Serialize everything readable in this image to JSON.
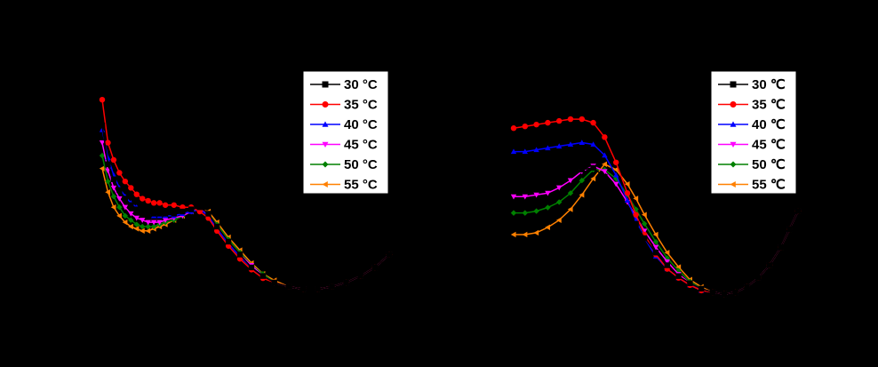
{
  "colors": {
    "30": "#000000",
    "35": "#ff0000",
    "40": "#0000ff",
    "45": "#ff00ff",
    "50": "#008000",
    "55": "#ff8000",
    "background": "#000000",
    "legend_background": "#ffffff"
  },
  "chart_data": [
    {
      "type": "line",
      "title": "",
      "xlabel": "",
      "ylabel": "",
      "legend_position": "top-right",
      "series": [
        {
          "name": "30 °C",
          "marker": "square",
          "color": "#000000",
          "x": [
            0.0,
            0.02,
            0.04,
            0.06,
            0.08,
            0.1,
            0.12,
            0.14,
            0.16,
            0.18,
            0.2,
            0.22,
            0.25,
            0.28,
            0.31,
            0.34,
            0.37,
            0.4,
            0.44,
            0.48,
            0.52,
            0.56,
            0.6,
            0.65,
            0.7,
            0.75,
            0.8,
            0.85,
            0.9,
            0.95,
            1.0
          ],
          "y": [
            0.78,
            0.6,
            0.53,
            0.48,
            0.44,
            0.41,
            0.39,
            0.38,
            0.37,
            0.37,
            0.37,
            0.37,
            0.37,
            0.38,
            0.39,
            0.4,
            0.37,
            0.31,
            0.24,
            0.18,
            0.12,
            0.08,
            0.05,
            0.03,
            0.02,
            0.02,
            0.03,
            0.05,
            0.08,
            0.12,
            0.18
          ]
        },
        {
          "name": "35 °C",
          "marker": "circle",
          "color": "#ff0000",
          "x": [
            0.0,
            0.02,
            0.04,
            0.06,
            0.08,
            0.1,
            0.12,
            0.14,
            0.16,
            0.18,
            0.2,
            0.22,
            0.25,
            0.28,
            0.31,
            0.34,
            0.37,
            0.4,
            0.44,
            0.48,
            0.52,
            0.56,
            0.6,
            0.65,
            0.7,
            0.75,
            0.8,
            0.85,
            0.9,
            0.95,
            1.0
          ],
          "y": [
            0.9,
            0.7,
            0.62,
            0.56,
            0.52,
            0.49,
            0.46,
            0.44,
            0.43,
            0.42,
            0.42,
            0.41,
            0.41,
            0.4,
            0.4,
            0.38,
            0.35,
            0.29,
            0.22,
            0.16,
            0.11,
            0.07,
            0.05,
            0.03,
            0.02,
            0.02,
            0.03,
            0.05,
            0.08,
            0.12,
            0.18
          ]
        },
        {
          "name": "40 °C",
          "marker": "triangle-up",
          "color": "#0000ff",
          "x": [
            0.0,
            0.02,
            0.04,
            0.06,
            0.08,
            0.1,
            0.12,
            0.14,
            0.16,
            0.18,
            0.2,
            0.22,
            0.25,
            0.28,
            0.31,
            0.34,
            0.37,
            0.4,
            0.44,
            0.48,
            0.52,
            0.56,
            0.6,
            0.65,
            0.7,
            0.75,
            0.8,
            0.85,
            0.9,
            0.95,
            1.0
          ],
          "y": [
            0.76,
            0.63,
            0.55,
            0.49,
            0.45,
            0.42,
            0.4,
            0.38,
            0.37,
            0.36,
            0.36,
            0.36,
            0.36,
            0.37,
            0.38,
            0.39,
            0.36,
            0.3,
            0.23,
            0.17,
            0.12,
            0.08,
            0.05,
            0.03,
            0.02,
            0.02,
            0.03,
            0.05,
            0.08,
            0.12,
            0.18
          ]
        },
        {
          "name": "45 °C",
          "marker": "triangle-down",
          "color": "#ff00ff",
          "x": [
            0.0,
            0.02,
            0.04,
            0.06,
            0.08,
            0.1,
            0.12,
            0.14,
            0.16,
            0.18,
            0.2,
            0.22,
            0.25,
            0.28,
            0.31,
            0.34,
            0.37,
            0.4,
            0.44,
            0.48,
            0.52,
            0.56,
            0.6,
            0.65,
            0.7,
            0.75,
            0.8,
            0.85,
            0.9,
            0.95,
            1.0
          ],
          "y": [
            0.7,
            0.57,
            0.49,
            0.44,
            0.4,
            0.37,
            0.35,
            0.34,
            0.33,
            0.33,
            0.33,
            0.34,
            0.35,
            0.36,
            0.38,
            0.39,
            0.37,
            0.31,
            0.24,
            0.18,
            0.13,
            0.08,
            0.05,
            0.03,
            0.02,
            0.02,
            0.03,
            0.05,
            0.08,
            0.12,
            0.18
          ]
        },
        {
          "name": "50 °C",
          "marker": "diamond",
          "color": "#008000",
          "x": [
            0.0,
            0.02,
            0.04,
            0.06,
            0.08,
            0.1,
            0.12,
            0.14,
            0.16,
            0.18,
            0.2,
            0.22,
            0.25,
            0.28,
            0.31,
            0.34,
            0.37,
            0.4,
            0.44,
            0.48,
            0.52,
            0.56,
            0.6,
            0.65,
            0.7,
            0.75,
            0.8,
            0.85,
            0.9,
            0.95,
            1.0
          ],
          "y": [
            0.64,
            0.52,
            0.45,
            0.4,
            0.36,
            0.34,
            0.32,
            0.31,
            0.31,
            0.31,
            0.32,
            0.33,
            0.34,
            0.36,
            0.38,
            0.39,
            0.37,
            0.32,
            0.25,
            0.19,
            0.13,
            0.09,
            0.05,
            0.03,
            0.02,
            0.02,
            0.03,
            0.05,
            0.08,
            0.12,
            0.18
          ]
        },
        {
          "name": "55 °C",
          "marker": "triangle-left",
          "color": "#ff8000",
          "x": [
            0.0,
            0.02,
            0.04,
            0.06,
            0.08,
            0.1,
            0.12,
            0.14,
            0.16,
            0.18,
            0.2,
            0.22,
            0.25,
            0.28,
            0.31,
            0.34,
            0.37,
            0.4,
            0.44,
            0.48,
            0.52,
            0.56,
            0.6,
            0.65,
            0.7,
            0.75,
            0.8,
            0.85,
            0.9,
            0.95,
            1.0
          ],
          "y": [
            0.58,
            0.47,
            0.4,
            0.36,
            0.33,
            0.31,
            0.3,
            0.29,
            0.29,
            0.3,
            0.31,
            0.32,
            0.34,
            0.36,
            0.38,
            0.39,
            0.38,
            0.33,
            0.26,
            0.2,
            0.14,
            0.09,
            0.06,
            0.03,
            0.02,
            0.02,
            0.03,
            0.05,
            0.08,
            0.12,
            0.18
          ]
        }
      ]
    },
    {
      "type": "line",
      "title": "",
      "xlabel": "",
      "ylabel": "",
      "legend_position": "top-right",
      "series": [
        {
          "name": "30 ℃",
          "marker": "square",
          "color": "#000000",
          "x": [
            0.0,
            0.04,
            0.08,
            0.12,
            0.16,
            0.2,
            0.24,
            0.28,
            0.32,
            0.36,
            0.4,
            0.43,
            0.46,
            0.5,
            0.54,
            0.58,
            0.62,
            0.66,
            0.7,
            0.74,
            0.78,
            0.82,
            0.86,
            0.9,
            0.94,
            0.97,
            1.0
          ],
          "y": [
            0.62,
            0.62,
            0.63,
            0.64,
            0.66,
            0.68,
            0.7,
            0.71,
            0.66,
            0.57,
            0.47,
            0.4,
            0.32,
            0.24,
            0.17,
            0.11,
            0.07,
            0.04,
            0.02,
            0.01,
            0.02,
            0.05,
            0.1,
            0.17,
            0.27,
            0.37,
            0.47
          ]
        },
        {
          "name": "35 ℃",
          "marker": "circle",
          "color": "#ff0000",
          "x": [
            0.0,
            0.04,
            0.08,
            0.12,
            0.16,
            0.2,
            0.24,
            0.28,
            0.32,
            0.36,
            0.4,
            0.43,
            0.46,
            0.5,
            0.54,
            0.58,
            0.62,
            0.66,
            0.7,
            0.74,
            0.78,
            0.82,
            0.86,
            0.9,
            0.94,
            0.97,
            1.0
          ],
          "y": [
            0.93,
            0.94,
            0.95,
            0.96,
            0.97,
            0.98,
            0.98,
            0.96,
            0.88,
            0.74,
            0.57,
            0.45,
            0.34,
            0.23,
            0.15,
            0.1,
            0.06,
            0.03,
            0.02,
            0.01,
            0.02,
            0.05,
            0.1,
            0.17,
            0.27,
            0.37,
            0.47
          ]
        },
        {
          "name": "40 ℃",
          "marker": "triangle-up",
          "color": "#0000ff",
          "x": [
            0.0,
            0.04,
            0.08,
            0.12,
            0.16,
            0.2,
            0.24,
            0.28,
            0.32,
            0.36,
            0.4,
            0.43,
            0.46,
            0.5,
            0.54,
            0.58,
            0.62,
            0.66,
            0.7,
            0.74,
            0.78,
            0.82,
            0.86,
            0.9,
            0.94,
            0.97,
            1.0
          ],
          "y": [
            0.8,
            0.8,
            0.81,
            0.82,
            0.83,
            0.84,
            0.85,
            0.84,
            0.78,
            0.67,
            0.53,
            0.42,
            0.32,
            0.22,
            0.15,
            0.1,
            0.06,
            0.03,
            0.02,
            0.01,
            0.02,
            0.05,
            0.1,
            0.17,
            0.27,
            0.37,
            0.47
          ]
        },
        {
          "name": "45 ℃",
          "marker": "triangle-down",
          "color": "#ff00ff",
          "x": [
            0.0,
            0.04,
            0.08,
            0.12,
            0.16,
            0.2,
            0.24,
            0.28,
            0.32,
            0.36,
            0.4,
            0.43,
            0.46,
            0.5,
            0.54,
            0.58,
            0.62,
            0.66,
            0.7,
            0.74,
            0.78,
            0.82,
            0.86,
            0.9,
            0.94,
            0.97,
            1.0
          ],
          "y": [
            0.55,
            0.55,
            0.56,
            0.57,
            0.6,
            0.64,
            0.69,
            0.72,
            0.69,
            0.62,
            0.52,
            0.44,
            0.36,
            0.27,
            0.19,
            0.12,
            0.07,
            0.04,
            0.02,
            0.01,
            0.02,
            0.05,
            0.1,
            0.17,
            0.27,
            0.37,
            0.47
          ]
        },
        {
          "name": "50 ℃",
          "marker": "diamond",
          "color": "#008000",
          "x": [
            0.0,
            0.04,
            0.08,
            0.12,
            0.16,
            0.2,
            0.24,
            0.28,
            0.32,
            0.36,
            0.4,
            0.43,
            0.46,
            0.5,
            0.54,
            0.58,
            0.62,
            0.66,
            0.7,
            0.74,
            0.78,
            0.82,
            0.86,
            0.9,
            0.94,
            0.97,
            1.0
          ],
          "y": [
            0.46,
            0.46,
            0.47,
            0.49,
            0.52,
            0.57,
            0.64,
            0.7,
            0.7,
            0.65,
            0.56,
            0.48,
            0.4,
            0.3,
            0.21,
            0.14,
            0.08,
            0.04,
            0.02,
            0.01,
            0.02,
            0.05,
            0.1,
            0.17,
            0.27,
            0.37,
            0.47
          ]
        },
        {
          "name": "55 ℃",
          "marker": "triangle-left",
          "color": "#ff8000",
          "x": [
            0.0,
            0.04,
            0.08,
            0.12,
            0.16,
            0.2,
            0.24,
            0.28,
            0.32,
            0.36,
            0.4,
            0.43,
            0.46,
            0.5,
            0.54,
            0.58,
            0.62,
            0.66,
            0.7,
            0.74,
            0.78,
            0.82,
            0.86,
            0.9,
            0.94,
            0.97,
            1.0
          ],
          "y": [
            0.34,
            0.34,
            0.35,
            0.38,
            0.42,
            0.48,
            0.56,
            0.65,
            0.73,
            0.7,
            0.62,
            0.54,
            0.45,
            0.34,
            0.24,
            0.16,
            0.09,
            0.05,
            0.02,
            0.01,
            0.02,
            0.05,
            0.1,
            0.17,
            0.27,
            0.37,
            0.47
          ]
        }
      ]
    }
  ]
}
